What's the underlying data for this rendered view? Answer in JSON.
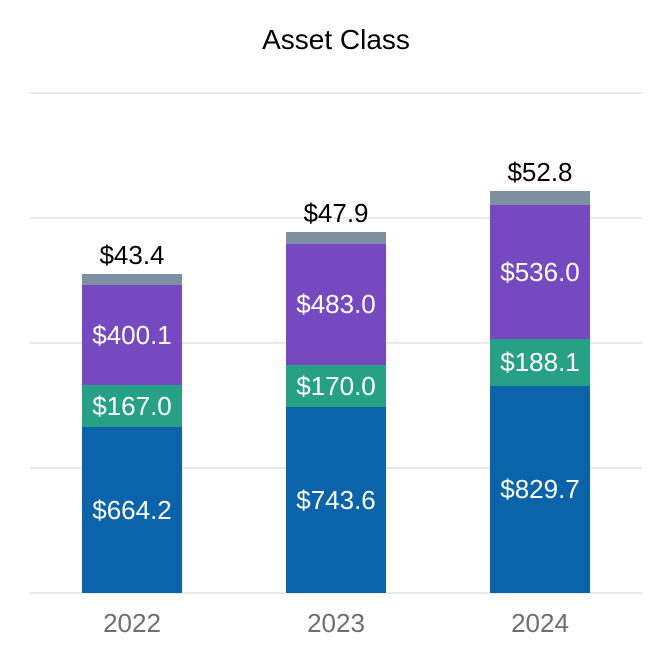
{
  "title": "Asset Class",
  "chart_data": {
    "type": "bar",
    "stacked": true,
    "title": "Asset Class",
    "categories": [
      "2022",
      "2023",
      "2024"
    ],
    "series": [
      {
        "name": "blue-segment",
        "color": "#0b63a9",
        "values": [
          664.2,
          743.6,
          829.7
        ],
        "data_labels": [
          "$664.2",
          "$743.6",
          "$829.7"
        ],
        "label_position": "inside",
        "label_color": "#ffffff"
      },
      {
        "name": "green-segment",
        "color": "#26a185",
        "values": [
          167.0,
          170.0,
          188.1
        ],
        "data_labels": [
          "$167.0",
          "$170.0",
          "$188.1"
        ],
        "label_position": "inside",
        "label_color": "#ffffff"
      },
      {
        "name": "purple-segment",
        "color": "#7649c1",
        "values": [
          400.1,
          483.0,
          536.0
        ],
        "data_labels": [
          "$400.1",
          "$483.0",
          "$536.0"
        ],
        "label_position": "inside",
        "label_color": "#ffffff"
      },
      {
        "name": "gray-segment",
        "color": "#7d90a2",
        "values": [
          43.4,
          47.9,
          52.8
        ],
        "data_labels": [
          "$43.4",
          "$47.9",
          "$52.8"
        ],
        "label_position": "above-bar",
        "label_color": "#000000"
      }
    ],
    "ylim": [
      0,
      2000
    ],
    "gridline_step": 500,
    "grid": true,
    "legend": "none",
    "y_axis_labels": "none",
    "xlabel": "",
    "ylabel": "",
    "x_tick_color": "#6e6e6e",
    "gridline_color": "#e9e9e9",
    "background": "#ffffff"
  }
}
